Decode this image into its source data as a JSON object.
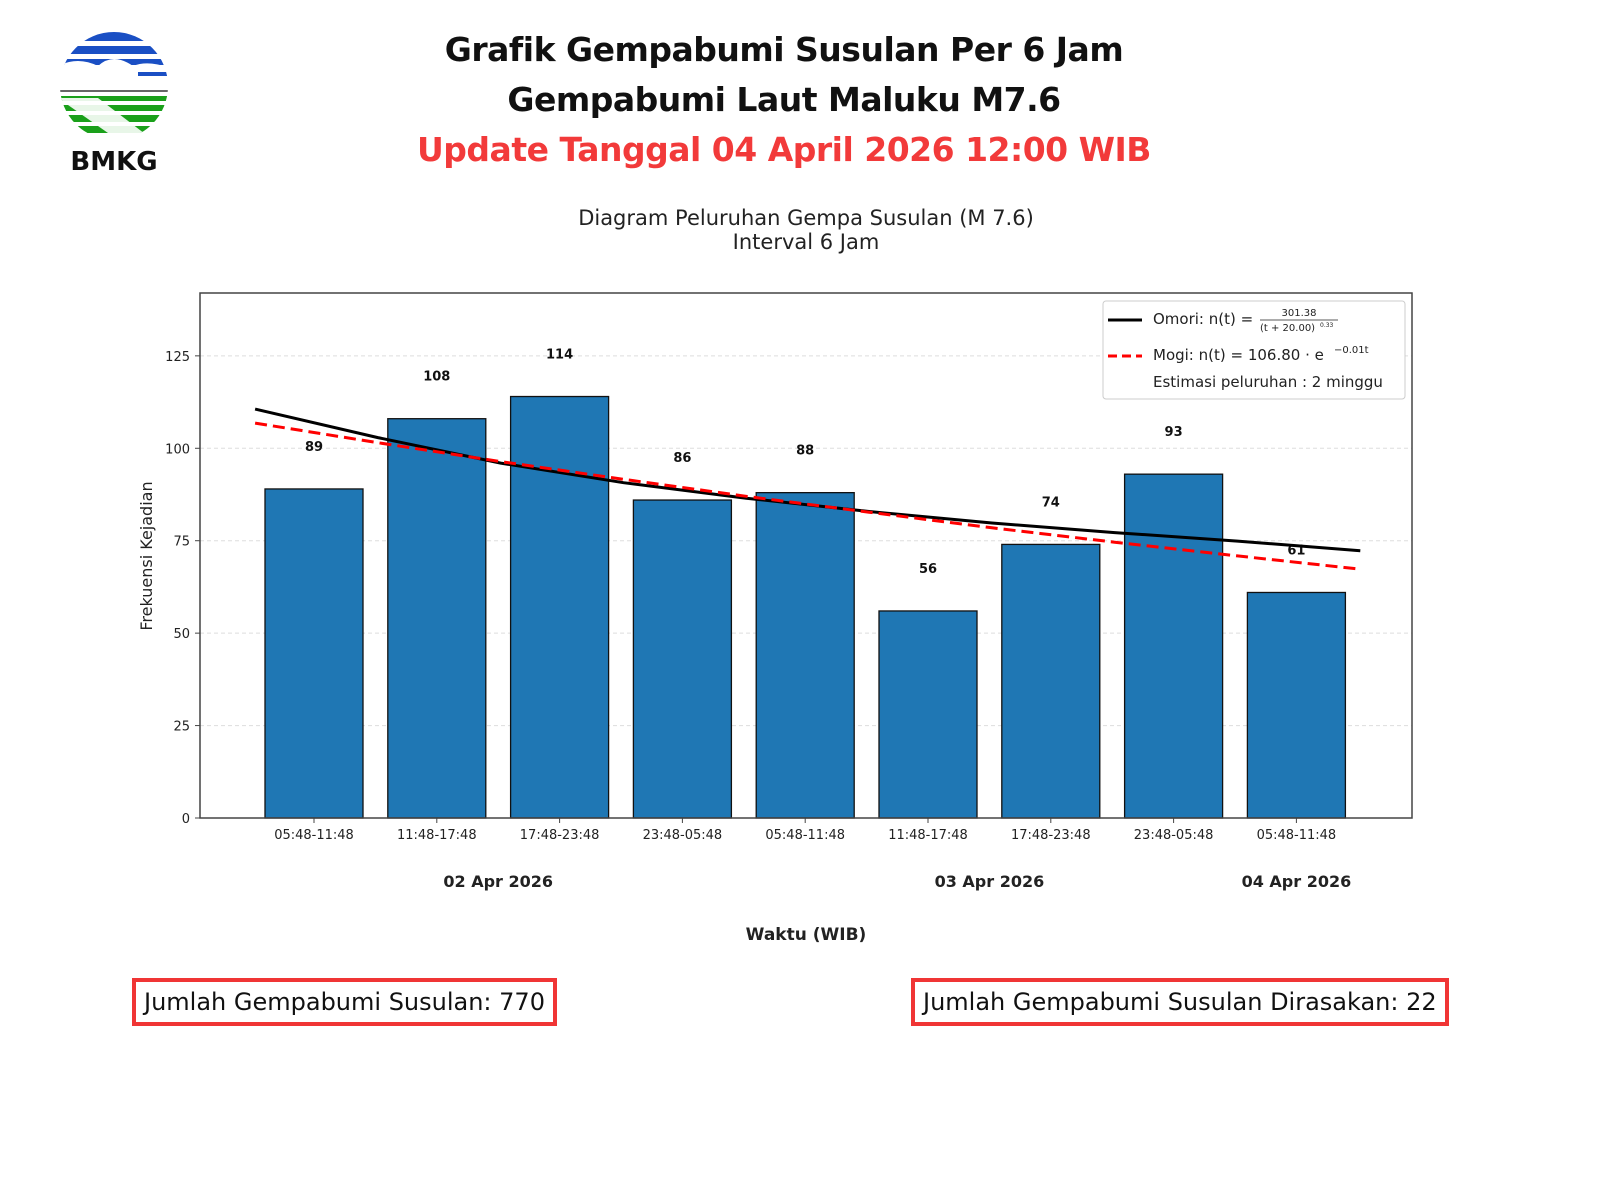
{
  "header": {
    "title_line1": "Grafik Gempabumi Susulan Per 6 Jam",
    "title_line2": "Gempabumi Laut Maluku M7.6",
    "update_line": "Update Tanggal 04 April 2026 12:00 WIB",
    "logo_text": "BMKG"
  },
  "colors": {
    "bar": "#1f77b4",
    "omori": "#000000",
    "mogi": "#ff0000",
    "accent_red": "#f23a3a"
  },
  "chart_data": {
    "type": "bar",
    "title": "Diagram Peluruhan Gempa Susulan (M 7.6)",
    "subtitle": "Interval 6 Jam",
    "xlabel": "Waktu (WIB)",
    "ylabel": "Frekuensi Kejadian",
    "ylim": [
      0,
      142
    ],
    "yticks": [
      0,
      25,
      50,
      75,
      100,
      125
    ],
    "grid": true,
    "categories": [
      "05:48-11:48",
      "11:48-17:48",
      "17:48-23:48",
      "23:48-05:48",
      "05:48-11:48",
      "11:48-17:48",
      "17:48-23:48",
      "23:48-05:48",
      "05:48-11:48"
    ],
    "values": [
      89,
      108,
      114,
      86,
      88,
      56,
      74,
      93,
      61
    ],
    "date_labels": [
      {
        "label": "02 Apr 2026",
        "position": 1.5
      },
      {
        "label": "03 Apr 2026",
        "position": 5.5
      },
      {
        "label": "04 Apr 2026",
        "position": 8
      }
    ],
    "curves": [
      {
        "name": "Omori",
        "hours": [
          0,
          6,
          12,
          18,
          24,
          30,
          36,
          42,
          48,
          54
        ],
        "values": [
          110.6,
          102.9,
          96.0,
          90.7,
          86.5,
          82.9,
          79.8,
          77.2,
          74.9,
          72.3
        ]
      },
      {
        "name": "Mogi",
        "hours": [
          0,
          6,
          12,
          18,
          24,
          30,
          36,
          42,
          48,
          54
        ],
        "values": [
          106.8,
          101.5,
          96.4,
          91.6,
          87.0,
          82.7,
          78.5,
          74.6,
          70.9,
          67.3
        ]
      }
    ],
    "legend": {
      "placement": "top-right",
      "omori_label": "Omori: n(t) =",
      "omori_numerator": "301.38",
      "omori_denominator": "(t + 20.00)",
      "omori_exponent": "0.33",
      "mogi_label": "Mogi: n(t) = 106.80 · e",
      "mogi_exponent": "−0.01t",
      "estimate": "Estimasi peluruhan : 2 minggu"
    }
  },
  "footer": {
    "total": "Jumlah Gempabumi Susulan: 770",
    "felt": "Jumlah Gempabumi Susulan Dirasakan: 22"
  }
}
